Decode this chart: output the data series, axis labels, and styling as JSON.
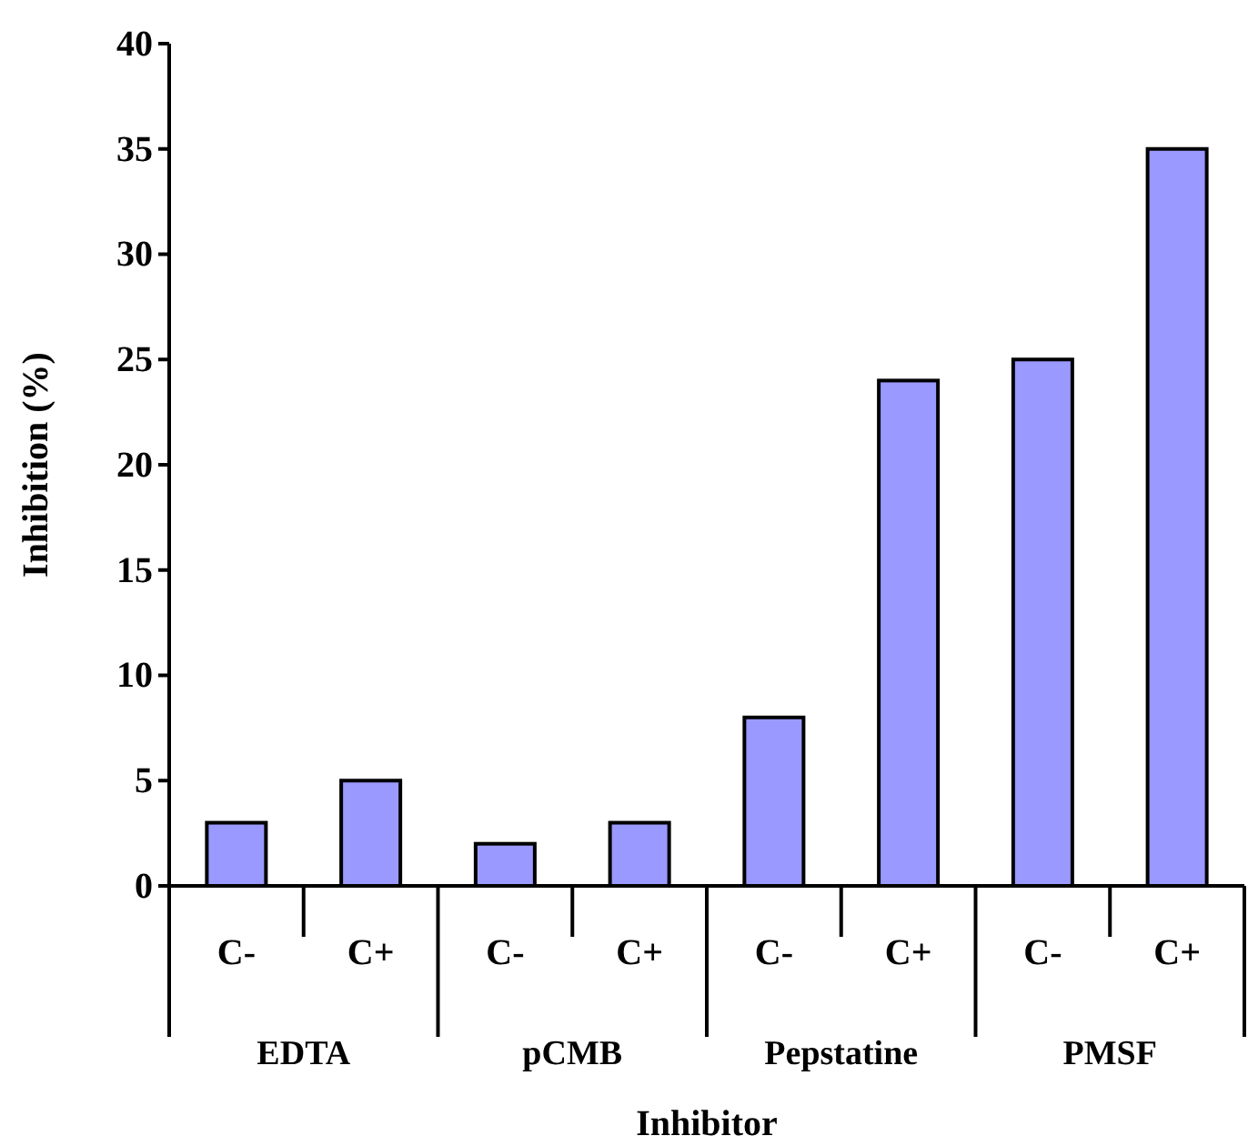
{
  "chart_data": {
    "type": "bar",
    "categories": [
      "C-",
      "C+",
      "C-",
      "C+",
      "C-",
      "C+",
      "C-",
      "C+"
    ],
    "values": [
      3,
      5,
      2,
      3,
      8,
      24,
      25,
      35
    ],
    "color": "#9999ff",
    "ylim": [
      0,
      40
    ],
    "yticks": [
      0,
      5,
      10,
      15,
      20,
      25,
      30,
      35,
      40
    ],
    "grid": false,
    "xlabel": "Inhibitor",
    "ylabel": "Inhibition (%)",
    "annotations": [
      "EDTA",
      "pCMB",
      "Pepstatine",
      "PMSF"
    ]
  }
}
